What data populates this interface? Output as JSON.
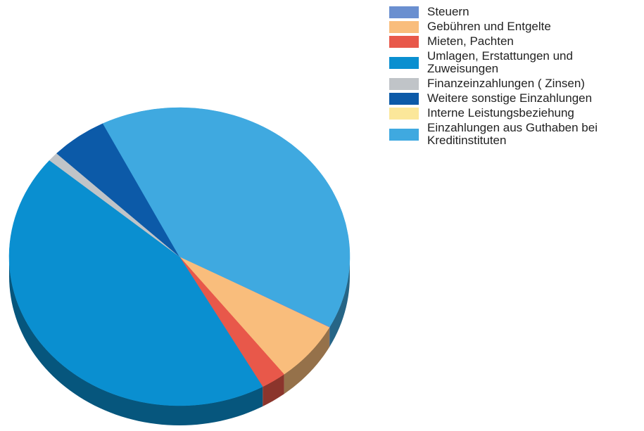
{
  "chart_data": {
    "type": "pie",
    "categories": [
      "Steuern",
      "Gebühren und Entgelte",
      "Mieten, Pachten",
      "Umlagen, Erstattungen und Zuweisungen",
      "Finanzeinzahlungen ( Zinsen)",
      "Weitere sonstige Einzahlungen",
      "Interne Leistungsbeziehung",
      "Einzahlungen aus Guthaben bei Kreditinstituten"
    ],
    "values": [
      0.1,
      6.6,
      2.4,
      44.3,
      1.0,
      5.4,
      0,
      40.2
    ],
    "colors": [
      "#6a8fd0",
      "#f9bd7c",
      "#e8584a",
      "#0a8fd0",
      "#c0c4c8",
      "#0c5aa8",
      "#fbe79a",
      "#3fa9e0"
    ],
    "legend": "right"
  }
}
